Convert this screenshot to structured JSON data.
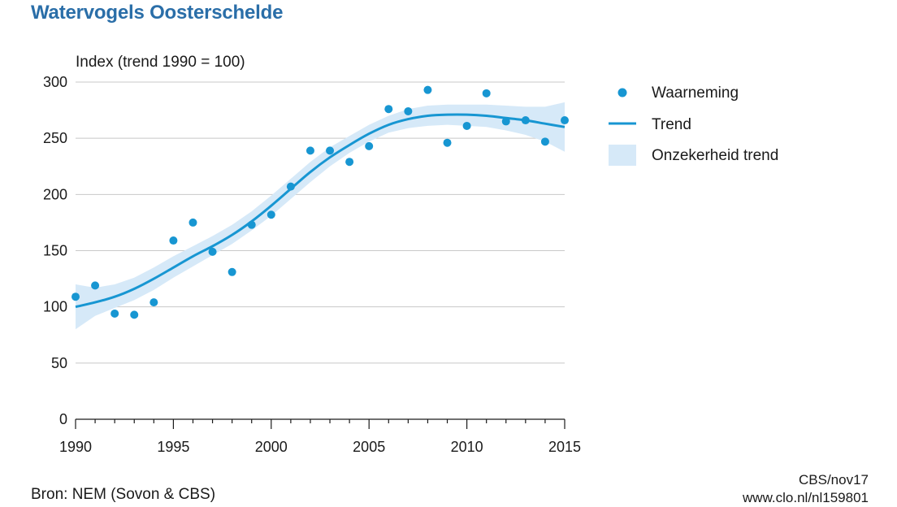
{
  "page": {
    "title": "Watervogels Oosterschelde",
    "source": "Bron: NEM (Sovon & CBS)",
    "credit": "CBS/nov17",
    "url": "www.clo.nl/nl159801"
  },
  "colors": {
    "title": "#2a6ea8",
    "points": "#1796d2",
    "trend": "#1796d2",
    "band": "#d6e9f8",
    "grid": "#c8c8c8",
    "axis": "#1a1a1a"
  },
  "chart_data": {
    "type": "scatter",
    "title": "Watervogels Oosterschelde",
    "ylabel": "Index (trend 1990 = 100)",
    "xlabel": "",
    "xlim": [
      1990,
      2015
    ],
    "ylim": [
      0,
      300
    ],
    "xticks": [
      1990,
      1995,
      2000,
      2005,
      2010,
      2015
    ],
    "yticks": [
      0,
      50,
      100,
      150,
      200,
      250,
      300
    ],
    "grid": true,
    "legend_position": "right",
    "series": [
      {
        "name": "Waarneming",
        "kind": "points",
        "x": [
          1990,
          1991,
          1992,
          1993,
          1994,
          1995,
          1996,
          1997,
          1998,
          1999,
          2000,
          2001,
          2002,
          2003,
          2004,
          2005,
          2006,
          2007,
          2008,
          2009,
          2010,
          2011,
          2012,
          2013,
          2014,
          2015
        ],
        "values": [
          109,
          119,
          94,
          93,
          104,
          159,
          175,
          149,
          131,
          173,
          182,
          207,
          239,
          239,
          229,
          243,
          276,
          274,
          293,
          246,
          261,
          290,
          265,
          266,
          247,
          266
        ]
      },
      {
        "name": "Trend",
        "kind": "line",
        "x": [
          1990,
          1991,
          1992,
          1993,
          1994,
          1995,
          1996,
          1997,
          1998,
          1999,
          2000,
          2001,
          2002,
          2003,
          2004,
          2005,
          2006,
          2007,
          2008,
          2009,
          2010,
          2011,
          2012,
          2013,
          2014,
          2015
        ],
        "values": [
          100,
          104,
          109,
          116,
          125,
          135,
          145,
          154,
          164,
          176,
          190,
          205,
          220,
          233,
          244,
          254,
          262,
          267,
          270,
          271,
          271,
          270,
          268,
          266,
          263,
          260
        ]
      },
      {
        "name": "Onzekerheid trend",
        "kind": "band",
        "x": [
          1990,
          1991,
          1992,
          1993,
          1994,
          1995,
          1996,
          1997,
          1998,
          1999,
          2000,
          2001,
          2002,
          2003,
          2004,
          2005,
          2006,
          2007,
          2008,
          2009,
          2010,
          2011,
          2012,
          2013,
          2014,
          2015
        ],
        "lower": [
          80,
          92,
          99,
          106,
          115,
          126,
          136,
          146,
          156,
          168,
          181,
          196,
          211,
          225,
          237,
          247,
          255,
          259,
          261,
          262,
          261,
          260,
          257,
          253,
          247,
          238
        ],
        "upper": [
          120,
          117,
          120,
          126,
          135,
          145,
          154,
          163,
          173,
          185,
          199,
          214,
          229,
          242,
          252,
          262,
          270,
          276,
          279,
          280,
          280,
          280,
          279,
          278,
          278,
          282
        ]
      }
    ]
  }
}
